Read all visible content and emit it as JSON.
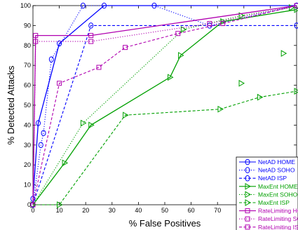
{
  "chart_data": {
    "type": "line",
    "title": "",
    "xlabel": "% False Positives",
    "ylabel": "% Detected Attacks",
    "xlim": [
      0,
      100
    ],
    "ylim": [
      0,
      100
    ],
    "xticks": [
      0,
      10,
      20,
      30,
      40,
      50,
      60,
      70,
      80,
      90,
      100
    ],
    "yticks": [
      0,
      10,
      20,
      30,
      40,
      50,
      60,
      70,
      80,
      90,
      100
    ],
    "grid": false,
    "legend_position": "bottom-right",
    "series": [
      {
        "name": "NetAD HOME",
        "color": "#0000ff",
        "line": "solid",
        "marker": "circle",
        "points": [
          [
            0,
            3
          ],
          [
            2,
            41
          ],
          [
            10,
            81
          ],
          [
            27,
            100
          ],
          [
            100,
            100
          ]
        ]
      },
      {
        "name": "NetAD SOHO",
        "color": "#0000ff",
        "line": "dotted",
        "marker": "circle",
        "points": [
          [
            0,
            0
          ],
          [
            3,
            30
          ],
          [
            4,
            36
          ],
          [
            7,
            73
          ],
          [
            19,
            100
          ],
          [
            46,
            100
          ],
          [
            67,
            90
          ],
          [
            100,
            100
          ]
        ]
      },
      {
        "name": "NetAD ISP",
        "color": "#0000ff",
        "line": "dashed",
        "marker": "circle",
        "points": [
          [
            0,
            0
          ],
          [
            22,
            90
          ],
          [
            100,
            90
          ]
        ]
      },
      {
        "name": "MaxEnt HOME",
        "color": "#00a000",
        "line": "solid",
        "marker": "triangle",
        "points": [
          [
            0,
            0
          ],
          [
            12,
            21
          ],
          [
            22,
            40
          ],
          [
            52,
            64
          ],
          [
            56,
            75
          ],
          [
            72,
            92
          ],
          [
            100,
            98
          ]
        ]
      },
      {
        "name": "MaxEnt SOHO",
        "color": "#00a000",
        "line": "dotted",
        "marker": "triangle",
        "points": [
          [
            0,
            0
          ],
          [
            19,
            41
          ],
          [
            57,
            88
          ],
          [
            79,
            95
          ],
          [
            98,
            99
          ]
        ]
      },
      {
        "name": "MaxEnt ISP",
        "color": "#00a000",
        "line": "dashed",
        "marker": "triangle",
        "points": [
          [
            0,
            0
          ],
          [
            10,
            0
          ],
          [
            35,
            45
          ],
          [
            71,
            48
          ],
          [
            86,
            54
          ],
          [
            100,
            57
          ]
        ]
      },
      {
        "name": "RateLimiting HOME",
        "color": "#b000b0",
        "line": "solid",
        "marker": "square",
        "points": [
          [
            0,
            0
          ],
          [
            1,
            85
          ],
          [
            22,
            85
          ],
          [
            100,
            100
          ]
        ]
      },
      {
        "name": "RateLimiting SOHO",
        "color": "#b000b0",
        "line": "dotted",
        "marker": "square",
        "points": [
          [
            0,
            0
          ],
          [
            1,
            82
          ],
          [
            22,
            82
          ],
          [
            67,
            91
          ],
          [
            100,
            100
          ]
        ]
      },
      {
        "name": "RateLimiting ISP",
        "color": "#b000b0",
        "line": "dashed",
        "marker": "square",
        "points": [
          [
            0,
            0
          ],
          [
            10,
            61
          ],
          [
            25,
            69
          ],
          [
            35,
            79
          ],
          [
            55,
            86
          ],
          [
            72,
            91
          ],
          [
            100,
            100
          ]
        ]
      }
    ],
    "extra_markers": [
      {
        "series": "MaxEnt SOHO",
        "color": "#00a000",
        "marker": "triangle",
        "points": [
          [
            79,
            61
          ],
          [
            95,
            76
          ]
        ]
      }
    ]
  }
}
